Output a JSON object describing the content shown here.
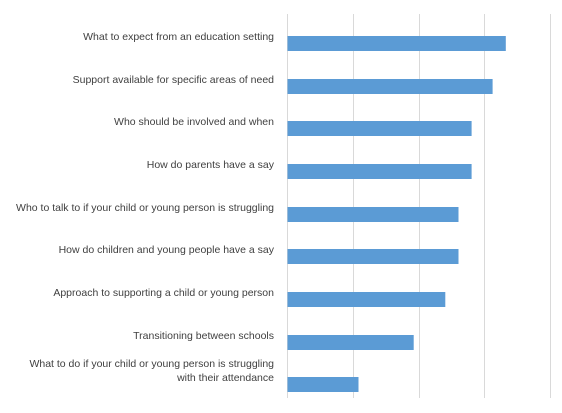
{
  "chart_data": {
    "type": "bar",
    "orientation": "horizontal",
    "title": "",
    "xlabel": "",
    "ylabel": "",
    "grid": true,
    "legend": "none",
    "xlim": [
      0,
      10
    ],
    "color": "#5b9bd5",
    "gridline_color": "#d9d9d9",
    "categories": [
      "What to expect from an education setting",
      "Support available for specific areas of need",
      "Who should be involved and when",
      "How do parents have a say",
      "Who to talk to if your child or young person is struggling",
      "How do children and young people have a say",
      "Approach to supporting a child or young person",
      "Transitioning between schools",
      "What to do if your child or young person is struggling with their attendance"
    ],
    "values": [
      8.3,
      7.8,
      7.0,
      7.0,
      6.5,
      6.5,
      6.0,
      4.8,
      2.7
    ]
  }
}
